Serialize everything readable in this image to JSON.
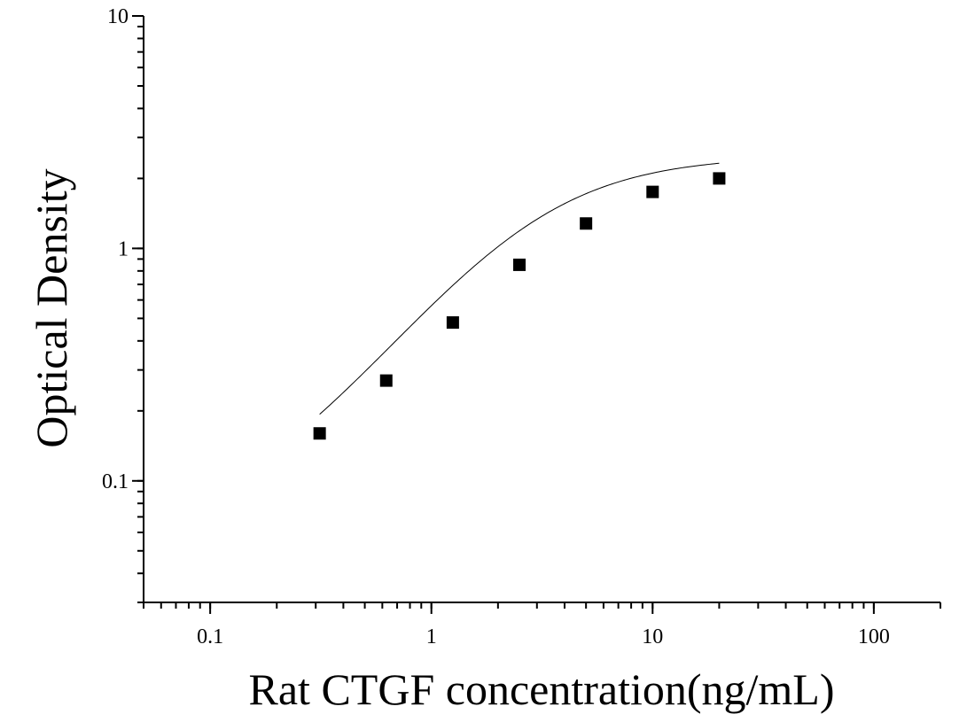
{
  "chart_data": {
    "type": "scatter",
    "title": "",
    "xlabel": "Rat CTGF concentration(ng/mL)",
    "ylabel": "Optical Density",
    "x_scale": "log",
    "y_scale": "log",
    "xlim": [
      0.05,
      200
    ],
    "ylim": [
      0.03,
      10
    ],
    "x_ticks": [
      {
        "value": 0.1,
        "label": "0.1"
      },
      {
        "value": 1,
        "label": "1"
      },
      {
        "value": 10,
        "label": "10"
      },
      {
        "value": 100,
        "label": "100"
      }
    ],
    "y_ticks": [
      {
        "value": 0.1,
        "label": "0.1"
      },
      {
        "value": 1,
        "label": "1"
      },
      {
        "value": 10,
        "label": "10"
      }
    ],
    "grid": false,
    "legend": "none",
    "series": [
      {
        "marker": "square",
        "color": "#000000",
        "x": [
          0.3125,
          0.625,
          1.25,
          2.5,
          5,
          10,
          20
        ],
        "y": [
          0.16,
          0.27,
          0.48,
          0.85,
          1.28,
          1.75,
          2.0
        ]
      }
    ],
    "fit_curve": {
      "type": "4PL",
      "color": "#000000",
      "params": {
        "A": 0.06,
        "B": 1.3,
        "C": 2.8,
        "D": 2.5
      }
    }
  }
}
